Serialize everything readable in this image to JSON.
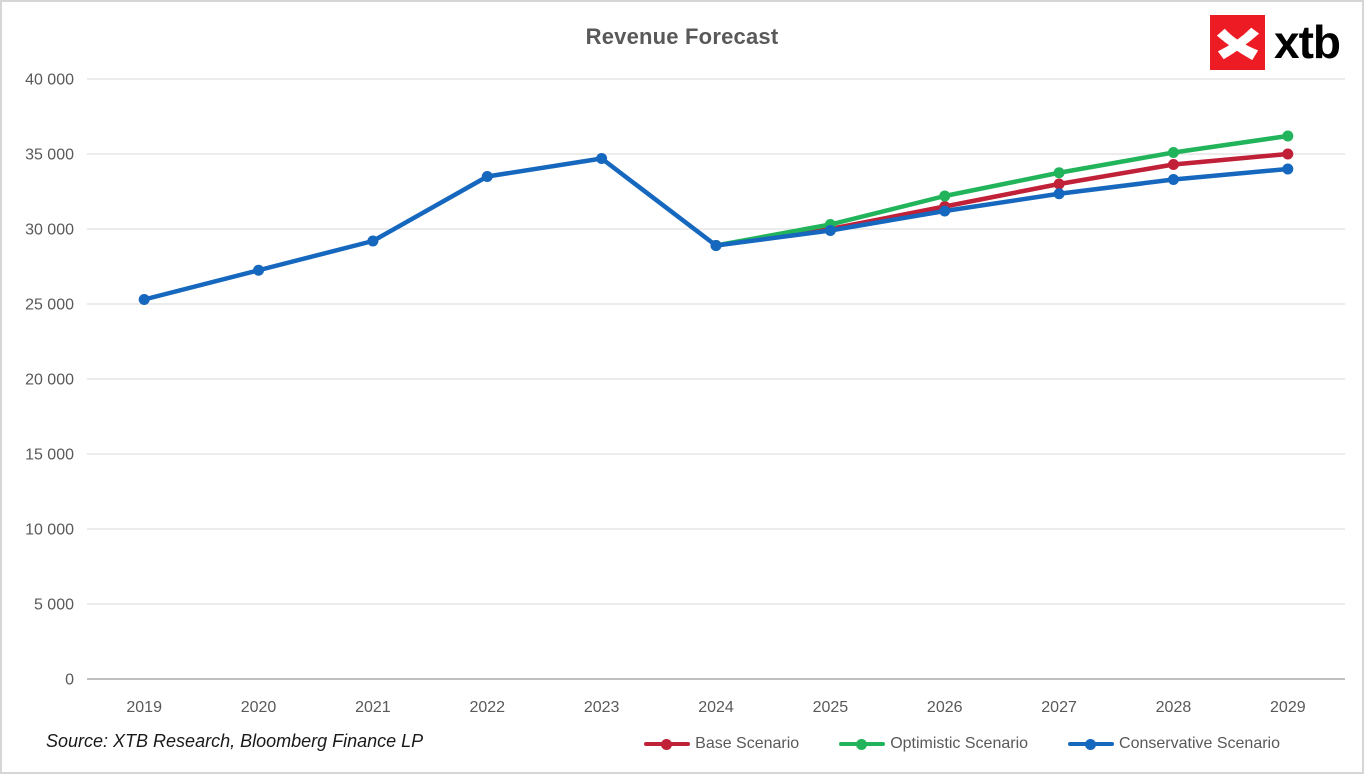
{
  "header": {
    "title": "Revenue Forecast",
    "logo_text": "xtb"
  },
  "source_note": "Source: XTB Research, Bloomberg Finance LP",
  "colors": {
    "background": "#FFFFFF",
    "frame_border": "#D6D6D6",
    "gridline": "#D9D9D9",
    "axis_line": "#BFBFBF",
    "axis_text": "#595959",
    "title_text": "#595959",
    "source_text": "#1A1A1A",
    "logo_red": "#ED1C24",
    "logo_text": "#000000",
    "series_base": "#C02038",
    "series_optimistic": "#22B45B",
    "series_conservative": "#1667BE"
  },
  "chart_data": {
    "type": "line",
    "title": "Revenue Forecast",
    "xlabel": "",
    "ylabel": "",
    "categories": [
      "2019",
      "2020",
      "2021",
      "2022",
      "2023",
      "2024",
      "2025",
      "2026",
      "2027",
      "2028",
      "2029"
    ],
    "series": [
      {
        "name": "Base Scenario",
        "color": "#C02038",
        "values": [
          null,
          null,
          null,
          null,
          null,
          28900,
          30000,
          31500,
          33000,
          34300,
          35000
        ]
      },
      {
        "name": "Optimistic Scenario",
        "color": "#22B45B",
        "values": [
          null,
          null,
          null,
          null,
          null,
          28900,
          30300,
          32200,
          33750,
          35100,
          36200
        ]
      },
      {
        "name": "Conservative Scenario",
        "color": "#1667BE",
        "values": [
          25300,
          27250,
          29200,
          33500,
          34700,
          28900,
          29900,
          31200,
          32350,
          33300,
          34000
        ]
      }
    ],
    "ylim": [
      0,
      40000
    ],
    "y_step": 5000,
    "y_tick_labels": [
      "0",
      "5 000",
      "10 000",
      "15 000",
      "20 000",
      "25 000",
      "30 000",
      "35 000",
      "40 000"
    ],
    "grid": true,
    "legend_position": "bottom",
    "marker": "circle"
  }
}
